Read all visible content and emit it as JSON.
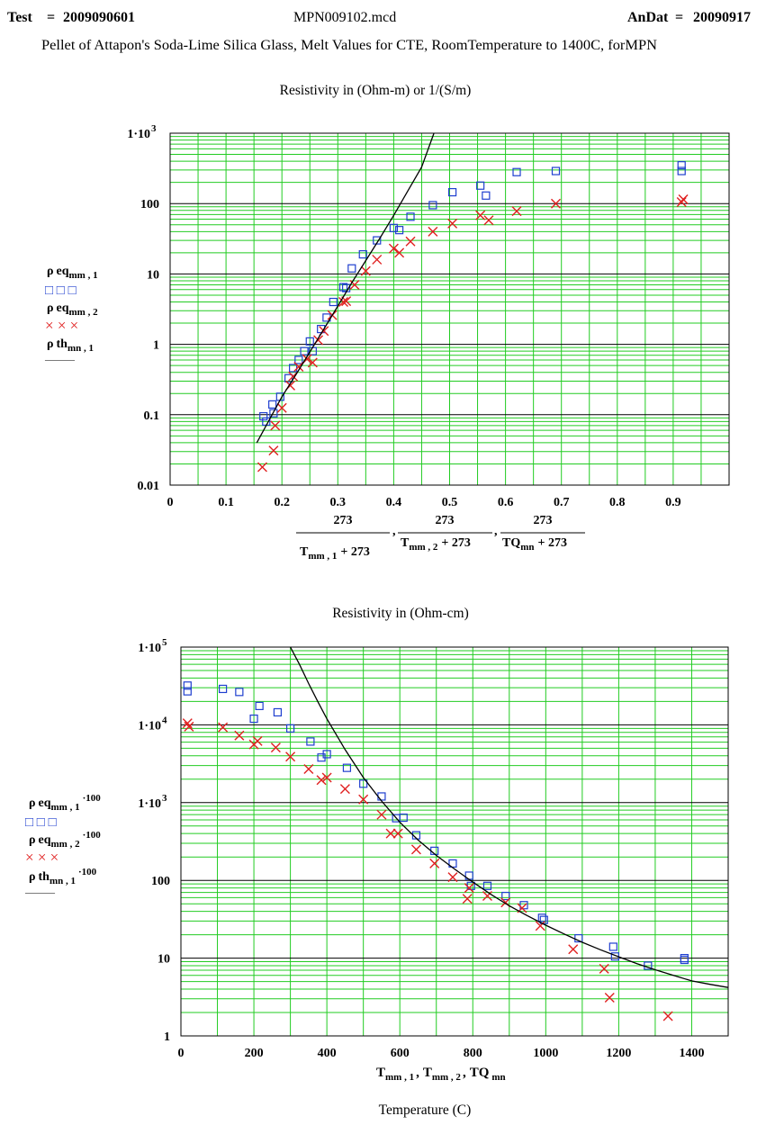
{
  "header": {
    "test_label": "Test",
    "test_eq": "=",
    "test_value": "2009090601",
    "file_name": "MPN009102.mcd",
    "andat_label": "AnDat",
    "andat_eq": "=",
    "andat_value": "20090917",
    "subtitle": "Pellet of Attapon's Soda-Lime Silica Glass, Melt Values for CTE,  RoomTemperature to 1400C,  forMPN"
  },
  "chart_data": [
    {
      "type": "scatter",
      "title": "Resistivity in (Ohm-m) or  1/(S/m)",
      "y_scale": "log",
      "xlim": [
        0,
        1.0
      ],
      "ylim": [
        0.01,
        1000
      ],
      "x_ticks": [
        0,
        0.1,
        0.2,
        0.3,
        0.4,
        0.5,
        0.6,
        0.7,
        0.8,
        0.9
      ],
      "x_tick_labels": [
        "0",
        "0.1",
        "0.2",
        "0.3",
        "0.4",
        "0.5",
        "0.6",
        "0.7",
        "0.8",
        "0.9"
      ],
      "y_tick_labels": [
        "0.01",
        "0.1",
        "1",
        "10",
        "100",
        "1·10"
      ],
      "y_top_exponent": "3",
      "xlabel": {
        "num": "273",
        "den1_var": "T",
        "den1_sub": "mm , 1",
        "den2_var": "T",
        "den2_sub": "mm , 2",
        "den3_var": "TQ",
        "den3_sub": "mn",
        "den_plus": "+ 273",
        "sep": ","
      },
      "legend": {
        "position": "left",
        "entries": [
          {
            "symbol": "ρ",
            "name": "eq",
            "sub": "mm , 1",
            "marker": "square",
            "color": "#1f3fcf",
            "marker_text": "□  □  □"
          },
          {
            "symbol": "ρ",
            "name": "eq",
            "sub": "mm , 2",
            "marker": "x",
            "color": "#e02020",
            "marker_text": "×  ×  ×"
          },
          {
            "symbol": "ρ",
            "name": "th",
            "sub": "mn , 1",
            "marker": "line",
            "color": "#000000",
            "marker_text": "———"
          }
        ]
      },
      "series": [
        {
          "name": "eq mm,1",
          "marker": "square",
          "color": "#1f3fcf",
          "x": [
            0.167,
            0.172,
            0.183,
            0.185,
            0.197,
            0.212,
            0.22,
            0.23,
            0.24,
            0.25,
            0.255,
            0.27,
            0.28,
            0.292,
            0.31,
            0.315,
            0.325,
            0.345,
            0.37,
            0.4,
            0.41,
            0.43,
            0.47,
            0.505,
            0.555,
            0.565,
            0.62,
            0.69,
            0.915,
            0.915
          ],
          "y": [
            0.095,
            0.08,
            0.14,
            0.105,
            0.18,
            0.33,
            0.46,
            0.6,
            0.8,
            1.1,
            0.8,
            1.65,
            2.4,
            4.0,
            6.5,
            6.3,
            12,
            19,
            30,
            45,
            42,
            65,
            95,
            145,
            180,
            130,
            280,
            290,
            350,
            290
          ]
        },
        {
          "name": "eq mm,2",
          "marker": "x",
          "color": "#e02020",
          "x": [
            0.165,
            0.185,
            0.188,
            0.2,
            0.215,
            0.22,
            0.23,
            0.245,
            0.255,
            0.265,
            0.275,
            0.29,
            0.31,
            0.315,
            0.33,
            0.35,
            0.37,
            0.4,
            0.41,
            0.43,
            0.47,
            0.505,
            0.555,
            0.57,
            0.62,
            0.69,
            0.915,
            0.918
          ],
          "y": [
            0.018,
            0.031,
            0.07,
            0.125,
            0.26,
            0.35,
            0.48,
            0.62,
            0.55,
            1.15,
            1.55,
            2.6,
            4.0,
            4.1,
            7,
            11,
            16,
            23,
            20,
            29,
            40,
            52,
            68,
            58,
            78,
            100,
            105,
            115
          ]
        },
        {
          "name": "th mn,1",
          "marker": "line",
          "color": "#000000",
          "x": [
            0.155,
            0.175,
            0.2,
            0.225,
            0.25,
            0.275,
            0.3,
            0.325,
            0.35,
            0.375,
            0.4,
            0.425,
            0.45,
            0.472
          ],
          "y": [
            0.04,
            0.078,
            0.18,
            0.37,
            0.78,
            1.65,
            3.5,
            7.5,
            15.5,
            32,
            68,
            150,
            330,
            1000
          ]
        }
      ]
    },
    {
      "type": "scatter",
      "title": "Resistivity in (Ohm-cm)",
      "y_scale": "log",
      "xlim": [
        0,
        1500
      ],
      "ylim": [
        1,
        100000
      ],
      "x_ticks": [
        0,
        200,
        400,
        600,
        800,
        1000,
        1200,
        1400
      ],
      "x_tick_labels": [
        "0",
        "200",
        "400",
        "600",
        "800",
        "1000",
        "1200",
        "1400"
      ],
      "y_tick_labels": [
        "1",
        "10",
        "100",
        "1·10",
        "1·10",
        "1·10"
      ],
      "y_tick_exponents": [
        "",
        "",
        "",
        "3",
        "4",
        "5"
      ],
      "xlabel": {
        "t1_var": "T",
        "t1_sub": "mm , 1",
        "t2_var": "T",
        "t2_sub": "mm , 2",
        "t3_var": "TQ",
        "t3_sub": "mn",
        "sep": ","
      },
      "footer_label": "Temperature (C)",
      "legend": {
        "position": "left",
        "entries": [
          {
            "symbol": "ρ",
            "name": "eq",
            "sub": "mm , 1",
            "sup": "·100",
            "marker": "square",
            "color": "#1f3fcf",
            "marker_text": "□  □  □"
          },
          {
            "symbol": "ρ",
            "name": "eq",
            "sub": "mm , 2",
            "sup": "·100",
            "marker": "x",
            "color": "#e02020",
            "marker_text": "×  ×  ×"
          },
          {
            "symbol": "ρ",
            "name": "th",
            "sub": "mn , 1",
            "sup": "·100",
            "marker": "line",
            "color": "#000000",
            "marker_text": "———"
          }
        ]
      },
      "series": [
        {
          "name": "eq mm,1 ·100",
          "marker": "square",
          "color": "#1f3fcf",
          "x": [
            18,
            18,
            115,
            160,
            200,
            215,
            265,
            300,
            355,
            385,
            400,
            455,
            500,
            550,
            590,
            610,
            645,
            695,
            745,
            790,
            795,
            840,
            890,
            940,
            990,
            995,
            1090,
            1185,
            1190,
            1280,
            1380,
            1380
          ],
          "y": [
            32000,
            27000,
            29000,
            26500,
            12000,
            17500,
            14500,
            9000,
            6100,
            3800,
            4200,
            2800,
            1750,
            1200,
            630,
            640,
            380,
            240,
            165,
            115,
            85,
            85,
            63,
            48,
            33,
            31,
            18,
            14,
            10.5,
            8,
            10,
            9.5
          ]
        },
        {
          "name": "eq mm,2 ·100",
          "marker": "x",
          "color": "#e02020",
          "x": [
            18,
            22,
            115,
            160,
            200,
            210,
            260,
            300,
            350,
            385,
            400,
            450,
            500,
            550,
            575,
            595,
            645,
            695,
            745,
            785,
            790,
            840,
            890,
            935,
            985,
            1075,
            1160,
            1175,
            1335
          ],
          "y": [
            10500,
            9500,
            9300,
            7300,
            5600,
            6200,
            5100,
            3900,
            2700,
            1950,
            2100,
            1500,
            1100,
            700,
            400,
            400,
            250,
            165,
            110,
            58,
            80,
            63,
            52,
            44,
            26,
            13,
            7.3,
            3.1,
            1.8
          ]
        },
        {
          "name": "th mn,1 ·100",
          "marker": "line",
          "color": "#000000",
          "x": [
            300,
            325,
            350,
            375,
            400,
            450,
            500,
            550,
            600,
            650,
            700,
            750,
            800,
            850,
            900,
            950,
            1000,
            1050,
            1100,
            1150,
            1200,
            1250,
            1300,
            1350,
            1400,
            1450,
            1500
          ],
          "y": [
            100000,
            60000,
            34000,
            20000,
            12000,
            4800,
            2100,
            1050,
            560,
            330,
            210,
            140,
            95,
            66,
            47,
            35,
            26.5,
            20.5,
            16,
            12.8,
            10.4,
            8.5,
            7.1,
            6.0,
            5.1,
            4.6,
            4.2
          ]
        }
      ]
    }
  ]
}
